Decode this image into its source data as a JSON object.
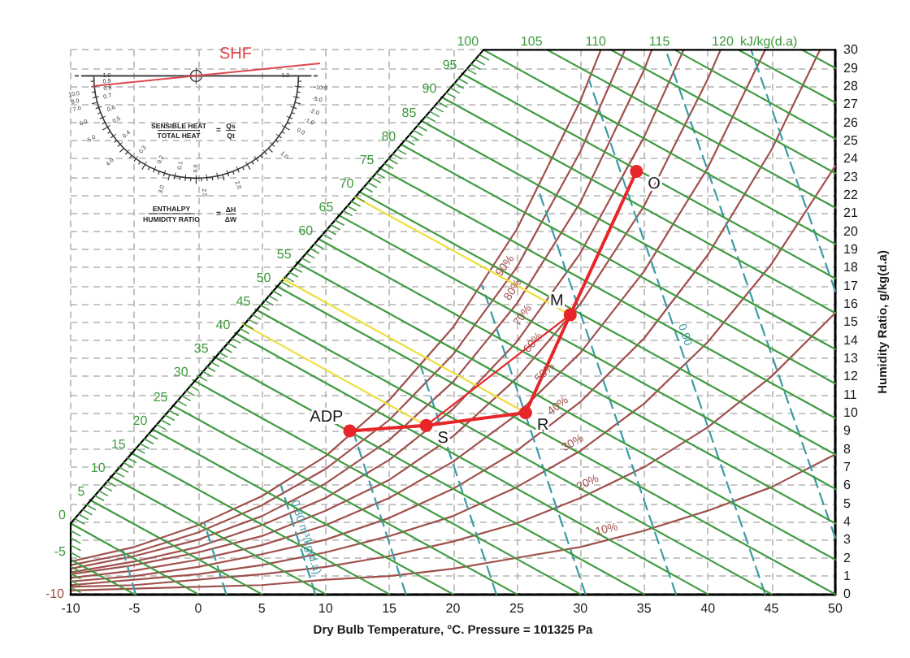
{
  "chart_data": {
    "type": "line",
    "xlabel": "Dry Bulb Temperature, °C. Pressure = 101325 Pa",
    "ylabel": "Humidity Ratio, g/kg(d.a)",
    "xlim": [
      -10,
      50
    ],
    "xticks": [
      -10,
      -5,
      0,
      5,
      10,
      15,
      20,
      25,
      30,
      35,
      40,
      45,
      50
    ],
    "ylim": [
      0,
      30
    ],
    "yticks": [
      0,
      1,
      2,
      3,
      4,
      5,
      6,
      7,
      8,
      9,
      10,
      11,
      12,
      13,
      14,
      15,
      16,
      17,
      18,
      19,
      20,
      21,
      22,
      23,
      24,
      25,
      26,
      27,
      28,
      29,
      30
    ],
    "grid": true,
    "series": [
      {
        "color": "#a0504c",
        "x": [
          -10,
          -5,
          0,
          5,
          10,
          15,
          20,
          25,
          30,
          31.6
        ],
        "values": [
          1.8,
          2.6,
          3.8,
          5.4,
          7.6,
          10.7,
          14.7,
          20.1,
          27.2,
          30
        ]
      },
      {
        "name": "90%",
        "color": "#a0504c",
        "x": [
          -10,
          -5,
          0,
          5,
          10,
          15,
          20,
          25,
          30,
          33.5
        ],
        "values": [
          1.6,
          2.3,
          3.4,
          4.9,
          6.9,
          9.6,
          13.2,
          18.0,
          24.4,
          30
        ]
      },
      {
        "name": "80%",
        "color": "#a0504c",
        "x": [
          -10,
          -5,
          0,
          5,
          10,
          15,
          20,
          25,
          30,
          35,
          35.6
        ],
        "values": [
          1.4,
          2.1,
          3.0,
          4.3,
          6.1,
          8.5,
          11.7,
          16.0,
          21.6,
          28.9,
          30
        ]
      },
      {
        "name": "70%",
        "color": "#a0504c",
        "x": [
          -10,
          -5,
          0,
          5,
          10,
          15,
          20,
          25,
          30,
          35,
          38.1
        ],
        "values": [
          1.2,
          1.8,
          2.6,
          3.8,
          5.3,
          7.4,
          10.2,
          13.9,
          18.8,
          25.2,
          30
        ]
      },
      {
        "name": "60%",
        "color": "#a0504c",
        "x": [
          -10,
          -5,
          0,
          5,
          10,
          15,
          20,
          25,
          30,
          35,
          40,
          41.0
        ],
        "values": [
          1.1,
          1.6,
          2.3,
          3.2,
          4.6,
          6.3,
          8.7,
          11.9,
          16.0,
          21.4,
          28.4,
          30
        ]
      },
      {
        "name": "50%",
        "color": "#a0504c",
        "x": [
          -10,
          -5,
          0,
          5,
          10,
          15,
          20,
          25,
          30,
          35,
          40,
          44.5
        ],
        "values": [
          0.9,
          1.3,
          1.9,
          2.7,
          3.8,
          5.3,
          7.3,
          9.9,
          13.3,
          17.8,
          23.5,
          30
        ]
      },
      {
        "name": "40%",
        "color": "#a0504c",
        "x": [
          -10,
          -5,
          0,
          5,
          10,
          15,
          20,
          25,
          30,
          35,
          40,
          45,
          48.8
        ],
        "values": [
          0.7,
          1.0,
          1.5,
          2.2,
          3.0,
          4.2,
          5.8,
          7.9,
          10.6,
          14.1,
          18.7,
          24.5,
          30
        ]
      },
      {
        "name": "30%",
        "color": "#a0504c",
        "x": [
          -10,
          -5,
          0,
          5,
          10,
          15,
          20,
          25,
          30,
          35,
          40,
          45,
          50
        ],
        "values": [
          0.5,
          0.8,
          1.1,
          1.6,
          2.3,
          3.2,
          4.3,
          5.9,
          7.9,
          10.5,
          13.9,
          18.2,
          23.6
        ]
      },
      {
        "name": "20%",
        "color": "#a0504c",
        "x": [
          -10,
          -5,
          0,
          5,
          10,
          15,
          20,
          25,
          30,
          35,
          40,
          45,
          50
        ],
        "values": [
          0.4,
          0.5,
          0.8,
          1.1,
          1.5,
          2.1,
          2.9,
          3.9,
          5.3,
          7.0,
          9.2,
          12.0,
          15.5
        ]
      },
      {
        "name": "10%",
        "color": "#a0504c",
        "x": [
          -10,
          -5,
          0,
          5,
          10,
          15,
          20,
          25,
          30,
          35,
          40,
          45,
          50
        ],
        "values": [
          0.2,
          0.3,
          0.4,
          0.5,
          0.8,
          1.0,
          1.4,
          2.0,
          2.6,
          3.5,
          4.6,
          5.9,
          7.7
        ]
      },
      {
        "color": "#3a9ca6",
        "line_style": "dashed",
        "x": [
          -4.9,
          -5.9
        ],
        "values": [
          0,
          2.4
        ]
      },
      {
        "color": "#3a9ca6",
        "line_style": "dashed",
        "x": [
          2.2,
          0.5
        ],
        "values": [
          0,
          3.9
        ]
      },
      {
        "name": "0.80 m³/kg(d.a)",
        "color": "#3a9ca6",
        "line_style": "dashed",
        "x": [
          9.2,
          6.5
        ],
        "values": [
          0,
          6.0
        ]
      },
      {
        "color": "#3a9ca6",
        "line_style": "dashed",
        "x": [
          16.3,
          12.2
        ],
        "values": [
          0,
          8.9
        ]
      },
      {
        "color": "#3a9ca6",
        "line_style": "dashed",
        "x": [
          23.4,
          17.5
        ],
        "values": [
          0,
          12.5
        ]
      },
      {
        "color": "#3a9ca6",
        "line_style": "dashed",
        "x": [
          30.4,
          22.3
        ],
        "values": [
          0,
          17.0
        ]
      },
      {
        "color": "#3a9ca6",
        "line_style": "dashed",
        "x": [
          37.5,
          26.7
        ],
        "values": [
          0,
          22.3
        ]
      },
      {
        "name": "0.90",
        "color": "#3a9ca6",
        "line_style": "dashed",
        "x": [
          44.5,
          30.7
        ],
        "values": [
          0,
          28.3
        ]
      },
      {
        "color": "#3a9ca6",
        "line_style": "dashed",
        "x": [
          50,
          36.7
        ],
        "values": [
          3.1,
          30
        ]
      },
      {
        "color": "#3a9ca6",
        "line_style": "dashed",
        "x": [
          50,
          43.4
        ],
        "values": [
          16.7,
          30
        ]
      },
      {
        "color": "#3f9a3f",
        "x": [
          -10,
          -5
        ],
        "values": [
          1.9,
          0
        ]
      },
      {
        "color": "#3f9a3f",
        "x": [
          -10,
          0
        ],
        "values": [
          3.9,
          0
        ]
      },
      {
        "color": "#3f9a3f",
        "x": [
          -8.5,
          5
        ],
        "values": [
          5.2,
          0
        ]
      },
      {
        "color": "#3f9a3f",
        "x": [
          -6.9,
          10
        ],
        "values": [
          6.5,
          0
        ]
      },
      {
        "color": "#3f9a3f",
        "x": [
          -5.3,
          15
        ],
        "values": [
          7.8,
          0
        ]
      },
      {
        "color": "#3f9a3f",
        "x": [
          -3.6,
          20
        ],
        "values": [
          9.1,
          0
        ]
      },
      {
        "color": "#3f9a3f",
        "x": [
          -2.0,
          25
        ],
        "values": [
          10.4,
          0
        ]
      },
      {
        "color": "#3f9a3f",
        "x": [
          -0.4,
          30
        ],
        "values": [
          11.8,
          0
        ]
      },
      {
        "color": "#3f9a3f",
        "x": [
          1.2,
          35
        ],
        "values": [
          13.1,
          0
        ]
      },
      {
        "color": "#3f9a3f",
        "x": [
          2.9,
          40
        ],
        "values": [
          14.4,
          0
        ]
      },
      {
        "color": "#3f9a3f",
        "x": [
          4.5,
          45
        ],
        "values": [
          15.7,
          0
        ]
      },
      {
        "color": "#3f9a3f",
        "x": [
          6.1,
          50
        ],
        "values": [
          17.0,
          0
        ]
      },
      {
        "color": "#3f9a3f",
        "x": [
          7.7,
          50
        ],
        "values": [
          18.3,
          1.9
        ]
      },
      {
        "color": "#3f9a3f",
        "x": [
          9.4,
          50
        ],
        "values": [
          19.6,
          3.9
        ]
      },
      {
        "color": "#3f9a3f",
        "x": [
          11.0,
          50
        ],
        "values": [
          20.9,
          5.8
        ]
      },
      {
        "color": "#3f9a3f",
        "x": [
          12.6,
          50
        ],
        "values": [
          22.2,
          7.7
        ]
      },
      {
        "color": "#3f9a3f",
        "x": [
          14.2,
          50
        ],
        "values": [
          23.5,
          9.7
        ]
      },
      {
        "color": "#3f9a3f",
        "x": [
          15.9,
          50
        ],
        "values": [
          24.8,
          11.6
        ]
      },
      {
        "color": "#3f9a3f",
        "x": [
          17.5,
          50
        ],
        "values": [
          26.1,
          13.5
        ]
      },
      {
        "color": "#3f9a3f",
        "x": [
          19.1,
          50
        ],
        "values": [
          27.4,
          15.5
        ]
      },
      {
        "color": "#3f9a3f",
        "x": [
          20.7,
          50
        ],
        "values": [
          28.7,
          17.4
        ]
      },
      {
        "color": "#3f9a3f",
        "x": [
          22.4,
          50
        ],
        "values": [
          30,
          19.3
        ]
      },
      {
        "color": "#3f9a3f",
        "x": [
          27.4,
          50
        ],
        "values": [
          30,
          21.3
        ]
      },
      {
        "color": "#3f9a3f",
        "x": [
          32.4,
          50
        ],
        "values": [
          30,
          23.2
        ]
      },
      {
        "color": "#3f9a3f",
        "x": [
          37.4,
          50
        ],
        "values": [
          30,
          25.1
        ]
      },
      {
        "color": "#3f9a3f",
        "x": [
          42.4,
          50
        ],
        "values": [
          30,
          27.1
        ]
      },
      {
        "color": "#3f9a3f",
        "x": [
          47.4,
          50
        ],
        "values": [
          30,
          29.0
        ]
      },
      {
        "color": "#000000",
        "x": [
          50,
          22.4,
          -10,
          -10
        ],
        "values": [
          30,
          30,
          3.9,
          0
        ]
      },
      {
        "color": "#ecdf3c",
        "x": [
          29.2,
          12.3
        ],
        "values": [
          15.4,
          21.9
        ]
      },
      {
        "color": "#ecdf3c",
        "x": [
          25.7,
          6.6
        ],
        "values": [
          10.0,
          17.4
        ]
      },
      {
        "color": "#ecdf3c",
        "x": [
          17.9,
          3.5
        ],
        "values": [
          9.3,
          14.9
        ]
      },
      {
        "color": "#e8262a",
        "marker": "circle",
        "x": [
          11.9,
          17.9,
          25.7,
          29.2,
          34.4
        ],
        "values": [
          9.0,
          9.3,
          10.0,
          15.4,
          23.3
        ]
      },
      {
        "color": "#e8262a",
        "x": [
          17.9,
          29.2
        ],
        "values": [
          9.3,
          15.4
        ]
      }
    ],
    "annotations": [
      {
        "text": "ADP",
        "x": 11.9,
        "y": 9.0
      },
      {
        "text": "S",
        "x": 17.9,
        "y": 9.3
      },
      {
        "text": "R",
        "x": 25.7,
        "y": 10.0
      },
      {
        "text": "M",
        "x": 29.2,
        "y": 15.4
      },
      {
        "text": "O",
        "x": 34.4,
        "y": 23.3
      },
      {
        "text": "-10",
        "x": -10,
        "y": 0
      },
      {
        "text": "-5",
        "x": -10,
        "y": 1.9
      },
      {
        "text": "0",
        "x": -10,
        "y": 3.9
      },
      {
        "text": "5",
        "x": -8.5,
        "y": 5.2
      },
      {
        "text": "10",
        "x": -6.9,
        "y": 6.5
      },
      {
        "text": "15",
        "x": -5.3,
        "y": 7.8
      },
      {
        "text": "20",
        "x": -3.6,
        "y": 9.1
      },
      {
        "text": "25",
        "x": -2.0,
        "y": 10.4
      },
      {
        "text": "30",
        "x": -0.4,
        "y": 11.8
      },
      {
        "text": "35",
        "x": 1.2,
        "y": 13.1
      },
      {
        "text": "40",
        "x": 2.9,
        "y": 14.4
      },
      {
        "text": "45",
        "x": 4.5,
        "y": 15.7
      },
      {
        "text": "50",
        "x": 6.1,
        "y": 17.0
      },
      {
        "text": "55",
        "x": 7.7,
        "y": 18.3
      },
      {
        "text": "60",
        "x": 9.4,
        "y": 19.6
      },
      {
        "text": "65",
        "x": 11.0,
        "y": 20.9
      },
      {
        "text": "70",
        "x": 12.6,
        "y": 22.2
      },
      {
        "text": "75",
        "x": 14.2,
        "y": 23.5
      },
      {
        "text": "80",
        "x": 15.9,
        "y": 24.8
      },
      {
        "text": "85",
        "x": 17.5,
        "y": 26.1
      },
      {
        "text": "90",
        "x": 19.1,
        "y": 27.4
      },
      {
        "text": "95",
        "x": 20.7,
        "y": 28.7
      },
      {
        "text": "100",
        "x": 22.4,
        "y": 30
      },
      {
        "text": "105",
        "x": 27.4,
        "y": 30
      },
      {
        "text": "110",
        "x": 32.4,
        "y": 30
      },
      {
        "text": "115",
        "x": 37.4,
        "y": 30
      },
      {
        "text": "120",
        "x": 42.4,
        "y": 30
      },
      {
        "text": "kJ/kg(d.a)",
        "x": 47.4,
        "y": 30
      },
      "SHF",
      "SENSIBLE HEAT",
      "TOTAL HEAT",
      "=",
      "Qs",
      "Qt",
      "ENTHALPY",
      "HUMIDITY RATIO",
      "=",
      "ΔH",
      "ΔW",
      "1.0",
      "0.9",
      "0.8",
      "0.7",
      "0.6",
      "0.5",
      "0.4",
      "0.3",
      "0.2",
      "0.1",
      "0.0",
      "1.0",
      "10.0",
      "8.0",
      "7.0",
      "6.0",
      "5.0",
      "4.0",
      "3.0",
      "2.5",
      "2.0",
      "1.0",
      "0.0",
      "-1.0",
      "-2.0",
      "-5.0",
      "-10.0"
    ]
  }
}
